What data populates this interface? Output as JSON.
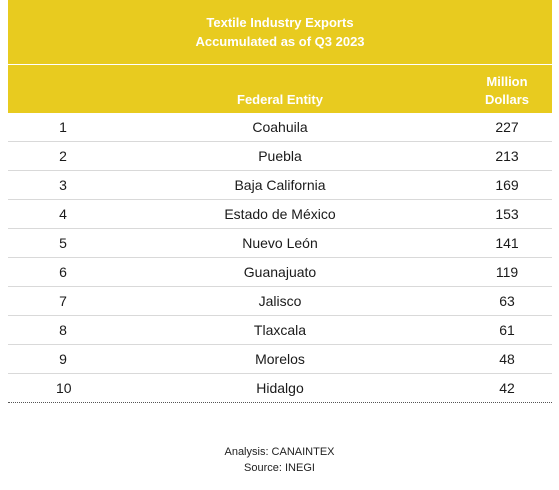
{
  "chart_data": {
    "type": "table",
    "title": "Textile Industry Exports",
    "subtitle": "Accumulated as of Q3 2023",
    "columns": [
      "",
      "Federal Entity",
      "Million Dollars"
    ],
    "value_header_lines": [
      "Million",
      "Dollars"
    ],
    "rows": [
      {
        "rank": "1",
        "entity": "Coahuila",
        "value": 227
      },
      {
        "rank": "2",
        "entity": "Puebla",
        "value": 213
      },
      {
        "rank": "3",
        "entity": "Baja California",
        "value": 169
      },
      {
        "rank": "4",
        "entity": "Estado de México",
        "value": 153
      },
      {
        "rank": "5",
        "entity": "Nuevo León",
        "value": 141
      },
      {
        "rank": "6",
        "entity": "Guanajuato",
        "value": 119
      },
      {
        "rank": "7",
        "entity": "Jalisco",
        "value": 63
      },
      {
        "rank": "8",
        "entity": "Tlaxcala",
        "value": 61
      },
      {
        "rank": "9",
        "entity": "Morelos",
        "value": 48
      },
      {
        "rank": "10",
        "entity": "Hidalgo",
        "value": 42
      }
    ]
  },
  "footer": {
    "analysis": "Analysis: CANAINTEX",
    "source": "Source: INEGI"
  },
  "colors": {
    "header_background": "#e8cb1f",
    "header_text": "#ffffff"
  }
}
